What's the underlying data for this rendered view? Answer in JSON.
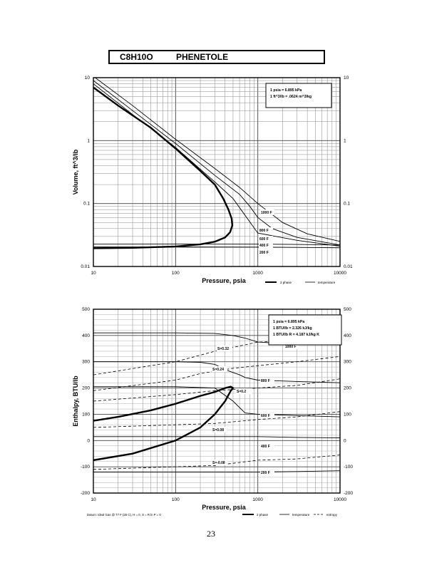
{
  "header": {
    "formula": "C8H10O",
    "name": "PHENETOLE"
  },
  "page_number": "23",
  "chart_data": [
    {
      "type": "line",
      "xscale": "log",
      "yscale": "log",
      "xlim": [
        10,
        10000
      ],
      "ylim": [
        0.01,
        10
      ],
      "xlabel": "Pressure,  psia",
      "ylabel": "Volume, ft^3/lb",
      "x_ticks": [
        "10",
        "100",
        "1000",
        "10000"
      ],
      "y_ticks": [
        "0.01",
        "0.1",
        "1",
        "10"
      ],
      "grid": true,
      "legend": [
        "2 phase",
        "temperature"
      ],
      "conversion_box": [
        "1 psia  =  6.895 kPa",
        "1 ft^3/lb  =  .0624 m^3/kg"
      ],
      "curve_labels": [
        "1000 F",
        "800 F",
        "600 F",
        "400 F",
        "200 F"
      ],
      "series": [
        {
          "name": "2 phase",
          "style": "2 phase",
          "points": [
            [
              10,
              0.0195
            ],
            [
              30,
              0.0198
            ],
            [
              100,
              0.0208
            ],
            [
              200,
              0.0225
            ],
            [
              300,
              0.0248
            ],
            [
              400,
              0.029
            ],
            [
              460,
              0.035
            ],
            [
              490,
              0.045
            ],
            [
              480,
              0.058
            ],
            [
              440,
              0.08
            ],
            [
              380,
              0.12
            ],
            [
              300,
              0.2
            ],
            [
              200,
              0.33
            ],
            [
              100,
              0.75
            ],
            [
              50,
              1.6
            ],
            [
              20,
              3.6
            ],
            [
              10,
              7.0
            ]
          ]
        },
        {
          "name": "1000 F",
          "style": "temperature",
          "points": [
            [
              10,
              10.5
            ],
            [
              30,
              3.6
            ],
            [
              100,
              1.05
            ],
            [
              300,
              0.36
            ],
            [
              600,
              0.18
            ],
            [
              1000,
              0.1
            ],
            [
              2000,
              0.05
            ],
            [
              4000,
              0.033
            ],
            [
              10000,
              0.025
            ]
          ]
        },
        {
          "name": "800 F",
          "style": "temperature",
          "points": [
            [
              10,
              9.0
            ],
            [
              30,
              3.0
            ],
            [
              100,
              0.9
            ],
            [
              300,
              0.28
            ],
            [
              600,
              0.14
            ],
            [
              800,
              0.09
            ],
            [
              1000,
              0.06
            ],
            [
              1500,
              0.04
            ],
            [
              3000,
              0.029
            ],
            [
              10000,
              0.022
            ]
          ]
        },
        {
          "name": "600 F",
          "style": "temperature",
          "points": [
            [
              10,
              8.0
            ],
            [
              30,
              2.6
            ],
            [
              100,
              0.78
            ],
            [
              300,
              0.22
            ],
            [
              500,
              0.12
            ],
            [
              700,
              0.065
            ],
            [
              1000,
              0.034
            ],
            [
              3000,
              0.026
            ],
            [
              10000,
              0.021
            ]
          ]
        },
        {
          "name": "400 F",
          "style": "temperature",
          "points": [
            [
              10,
              0.0226
            ],
            [
              100,
              0.0227
            ],
            [
              1000,
              0.0226
            ],
            [
              3000,
              0.0224
            ],
            [
              10000,
              0.0219
            ]
          ]
        },
        {
          "name": "200 F",
          "style": "temperature",
          "points": [
            [
              10,
              0.0204
            ],
            [
              100,
              0.0204
            ],
            [
              1000,
              0.0203
            ],
            [
              3000,
              0.0201
            ],
            [
              10000,
              0.0198
            ]
          ]
        }
      ]
    },
    {
      "type": "line",
      "xscale": "log",
      "yscale": "linear",
      "xlim": [
        10,
        10000
      ],
      "ylim": [
        -200,
        500
      ],
      "xlabel": "Pressure,  psia",
      "ylabel": "Enthalpy, BTU/lb",
      "x_ticks": [
        "10",
        "100",
        "1000",
        "10000"
      ],
      "y_ticks": [
        "500",
        "400",
        "300",
        "200",
        "100",
        "0",
        "-100",
        "-200"
      ],
      "grid": true,
      "legend": [
        "2 phase",
        "temperature",
        "entropy"
      ],
      "conversion_box": [
        "1 psia  =  6.895 kPa",
        "1 BTU/lb  =  2.326 kJ/kg",
        "1 BTU/lb R  =  4.187 kJ/kg K"
      ],
      "curve_labels": [
        "1000 F",
        "800 F",
        "600 F",
        "400 F",
        "200 F"
      ],
      "entropy_labels": [
        "S=0.32",
        "S=0.24",
        "S=0.2",
        "S=0.08",
        "S=-0.08"
      ],
      "datum_note": "Datum: Ideal Gas @ 77 F (25 C),  H = 0,  S = R ln P = 0",
      "series": [
        {
          "name": "2 phase",
          "style": "2 phase",
          "points": [
            [
              10,
              -75
            ],
            [
              30,
              -50
            ],
            [
              100,
              0
            ],
            [
              200,
              50
            ],
            [
              300,
              100
            ],
            [
              400,
              150
            ],
            [
              470,
              190
            ],
            [
              500,
              200
            ],
            [
              470,
              205
            ],
            [
              400,
              200
            ],
            [
              300,
              185
            ],
            [
              200,
              170
            ],
            [
              100,
              140
            ],
            [
              50,
              115
            ],
            [
              20,
              90
            ],
            [
              10,
              75
            ]
          ]
        },
        {
          "name": "1000 F",
          "style": "temperature",
          "points": [
            [
              10,
              410
            ],
            [
              100,
              410
            ],
            [
              300,
              408
            ],
            [
              500,
              400
            ],
            [
              700,
              390
            ],
            [
              1000,
              375
            ],
            [
              2000,
              370
            ],
            [
              5000,
              368
            ],
            [
              10000,
              365
            ]
          ]
        },
        {
          "name": "800 F",
          "style": "temperature",
          "points": [
            [
              10,
              300
            ],
            [
              100,
              300
            ],
            [
              200,
              298
            ],
            [
              300,
              290
            ],
            [
              400,
              270
            ],
            [
              600,
              250
            ],
            [
              700,
              240
            ],
            [
              1000,
              230
            ],
            [
              3000,
              225
            ],
            [
              10000,
              220
            ]
          ]
        },
        {
          "name": "600 F",
          "style": "temperature",
          "points": [
            [
              10,
              205
            ],
            [
              100,
              205
            ],
            [
              300,
              200
            ],
            [
              500,
              150
            ],
            [
              700,
              105
            ],
            [
              1000,
              100
            ],
            [
              3000,
              95
            ],
            [
              10000,
              90
            ]
          ]
        },
        {
          "name": "400 F",
          "style": "temperature",
          "points": [
            [
              10,
              15
            ],
            [
              100,
              15
            ],
            [
              1000,
              15
            ],
            [
              3000,
              12
            ],
            [
              10000,
              10
            ]
          ]
        },
        {
          "name": "200 F",
          "style": "temperature",
          "points": [
            [
              10,
              -120
            ],
            [
              100,
              -120
            ],
            [
              1000,
              -120
            ],
            [
              3000,
              -118
            ],
            [
              10000,
              -115
            ]
          ]
        },
        {
          "name": "S=0.32",
          "style": "entropy",
          "points": [
            [
              10,
              250
            ],
            [
              100,
              300
            ],
            [
              300,
              340
            ],
            [
              1000,
              375
            ],
            [
              3000,
              380
            ],
            [
              10000,
              390
            ]
          ]
        },
        {
          "name": "S=0.24",
          "style": "entropy",
          "points": [
            [
              10,
              190
            ],
            [
              100,
              230
            ],
            [
              200,
              255
            ],
            [
              500,
              275
            ],
            [
              1000,
              285
            ],
            [
              3000,
              300
            ],
            [
              10000,
              320
            ]
          ]
        },
        {
          "name": "S=0.2",
          "style": "entropy",
          "points": [
            [
              10,
              150
            ],
            [
              100,
              175
            ],
            [
              300,
              190
            ],
            [
              1000,
              200
            ],
            [
              3000,
              210
            ],
            [
              10000,
              235
            ]
          ]
        },
        {
          "name": "S=0.08",
          "style": "entropy",
          "points": [
            [
              10,
              50
            ],
            [
              100,
              60
            ],
            [
              300,
              65
            ],
            [
              1000,
              80
            ],
            [
              3000,
              90
            ],
            [
              10000,
              110
            ]
          ]
        },
        {
          "name": "S=-0.08",
          "style": "entropy",
          "points": [
            [
              10,
              -110
            ],
            [
              100,
              -100
            ],
            [
              300,
              -95
            ],
            [
              1000,
              -75
            ],
            [
              3000,
              -70
            ],
            [
              10000,
              -55
            ]
          ]
        }
      ]
    }
  ]
}
